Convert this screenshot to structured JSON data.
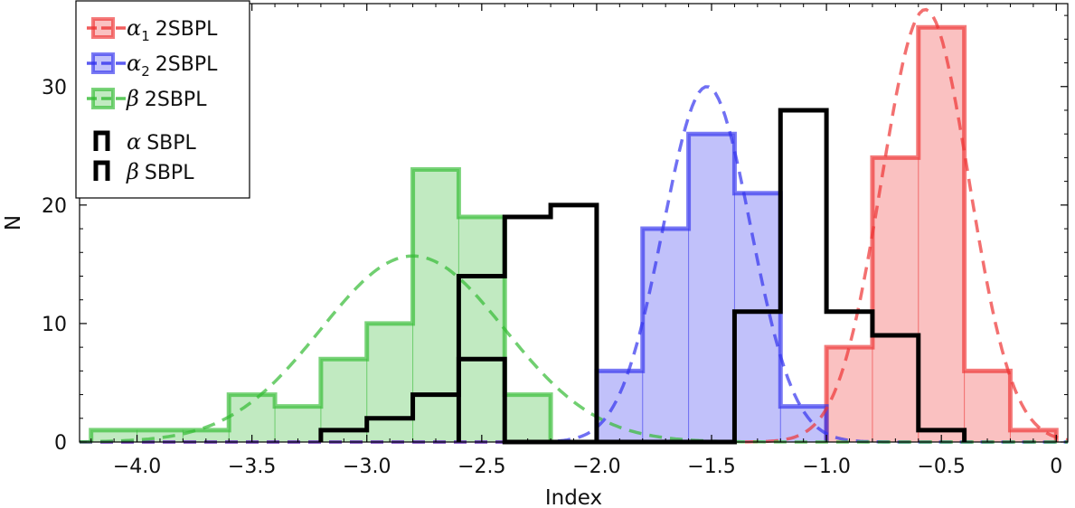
{
  "chart_data": {
    "type": "bar",
    "subtype": "histogram-with-gaussian-fits",
    "xlabel": "Index",
    "ylabel": "N",
    "xlim": [
      -4.25,
      0.05
    ],
    "ylim": [
      0,
      37
    ],
    "grid": false,
    "legend_position": "top-left",
    "x_ticks": [
      -4.0,
      -3.5,
      -3.0,
      -2.5,
      -2.0,
      -1.5,
      -1.0,
      -0.5,
      0
    ],
    "x_tick_labels": [
      "−4.0",
      "−3.5",
      "−3.0",
      "−2.5",
      "−2.0",
      "−1.5",
      "−1.0",
      "−0.5",
      "0"
    ],
    "y_ticks": [
      0,
      10,
      20,
      30
    ],
    "y_tick_labels": [
      "0",
      "10",
      "20",
      "30"
    ],
    "series": [
      {
        "name": "α1 2SBPL",
        "name_symbol": "α",
        "name_subscript": "1",
        "name_text": "2SBPL",
        "kind": "filled-histogram",
        "color": "#ee3333",
        "edges": [
          -1.0,
          -0.8,
          -0.6,
          -0.4,
          -0.2,
          0.0
        ],
        "counts": [
          8,
          24,
          35,
          6,
          1
        ],
        "fit": {
          "mu": -0.57,
          "sigma": 0.19,
          "peak": 36.5
        }
      },
      {
        "name": "α2 2SBPL",
        "name_symbol": "α",
        "name_subscript": "2",
        "name_text": "2SBPL",
        "kind": "filled-histogram",
        "color": "#3333ee",
        "edges": [
          -2.0,
          -1.8,
          -1.6,
          -1.4,
          -1.2,
          -1.0
        ],
        "counts": [
          6,
          18,
          26,
          21,
          3
        ],
        "fit": {
          "mu": -1.52,
          "sigma": 0.19,
          "peak": 30
        }
      },
      {
        "name": "β 2SBPL",
        "name_symbol": "β",
        "name_subscript": "",
        "name_text": "2SBPL",
        "kind": "filled-histogram",
        "color": "#33bb33",
        "edges": [
          -4.2,
          -4.0,
          -3.8,
          -3.6,
          -3.4,
          -3.2,
          -3.0,
          -2.8,
          -2.6,
          -2.4,
          -2.2
        ],
        "counts": [
          1,
          1,
          1,
          4,
          3,
          7,
          10,
          23,
          19,
          4
        ],
        "fit": {
          "mu": -2.8,
          "sigma": 0.4,
          "peak": 15.7
        }
      },
      {
        "name": "α SBPL",
        "name_symbol": "α",
        "name_subscript": "",
        "name_text": "SBPL",
        "kind": "step-outline",
        "color": "#000000",
        "edges": [
          -2.6,
          -2.4,
          -2.2,
          -2.0
        ],
        "counts": [
          14,
          19,
          20
        ]
      },
      {
        "name": "β SBPL",
        "name_symbol": "β",
        "name_subscript": "",
        "name_text": "SBPL",
        "kind": "step-outline",
        "color": "#000000",
        "edges": [
          -3.2,
          -3.0,
          -2.8,
          -2.6,
          -2.4,
          -2.2,
          -2.0,
          -1.8,
          -1.6,
          -1.4,
          -1.2,
          -1.0,
          -0.8,
          -0.6,
          -0.4
        ],
        "counts": [
          1,
          2,
          4,
          7,
          0,
          0,
          0,
          0,
          0,
          11,
          28,
          11,
          9,
          1
        ]
      }
    ]
  }
}
